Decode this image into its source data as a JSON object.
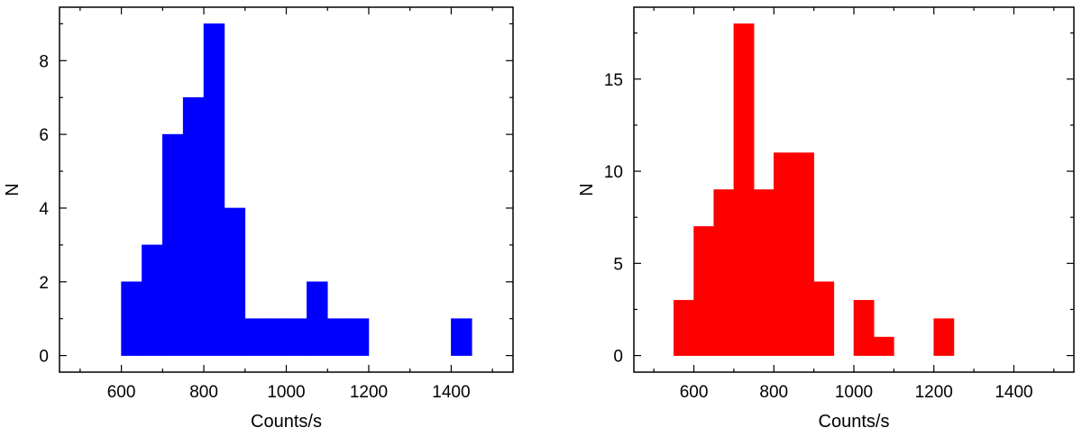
{
  "chart_data": [
    {
      "type": "bar",
      "color": "#0000ff",
      "xlabel": "Counts/s",
      "ylabel": "N",
      "xlim": [
        450,
        1550
      ],
      "ylim": [
        -0.45,
        9.45
      ],
      "xticks": [
        600,
        800,
        1000,
        1200,
        1400
      ],
      "yticks": [
        0,
        2,
        4,
        6,
        8
      ],
      "bin_width": 50,
      "bins": [
        {
          "x": 600,
          "y": 2
        },
        {
          "x": 650,
          "y": 3
        },
        {
          "x": 700,
          "y": 6
        },
        {
          "x": 750,
          "y": 7
        },
        {
          "x": 800,
          "y": 9
        },
        {
          "x": 850,
          "y": 4
        },
        {
          "x": 900,
          "y": 1
        },
        {
          "x": 950,
          "y": 1
        },
        {
          "x": 1000,
          "y": 1
        },
        {
          "x": 1050,
          "y": 2
        },
        {
          "x": 1100,
          "y": 1
        },
        {
          "x": 1150,
          "y": 1
        },
        {
          "x": 1400,
          "y": 1
        }
      ]
    },
    {
      "type": "bar",
      "color": "#ff0000",
      "xlabel": "Counts/s",
      "ylabel": "N",
      "xlim": [
        450,
        1550
      ],
      "ylim": [
        -0.9,
        18.9
      ],
      "xticks": [
        600,
        800,
        1000,
        1200,
        1400
      ],
      "yticks": [
        0,
        5,
        10,
        15
      ],
      "bin_width": 50,
      "bins": [
        {
          "x": 550,
          "y": 3
        },
        {
          "x": 600,
          "y": 7
        },
        {
          "x": 650,
          "y": 9
        },
        {
          "x": 700,
          "y": 18
        },
        {
          "x": 750,
          "y": 9
        },
        {
          "x": 800,
          "y": 11
        },
        {
          "x": 850,
          "y": 11
        },
        {
          "x": 900,
          "y": 4
        },
        {
          "x": 1000,
          "y": 3
        },
        {
          "x": 1050,
          "y": 1
        },
        {
          "x": 1200,
          "y": 2
        }
      ]
    }
  ]
}
